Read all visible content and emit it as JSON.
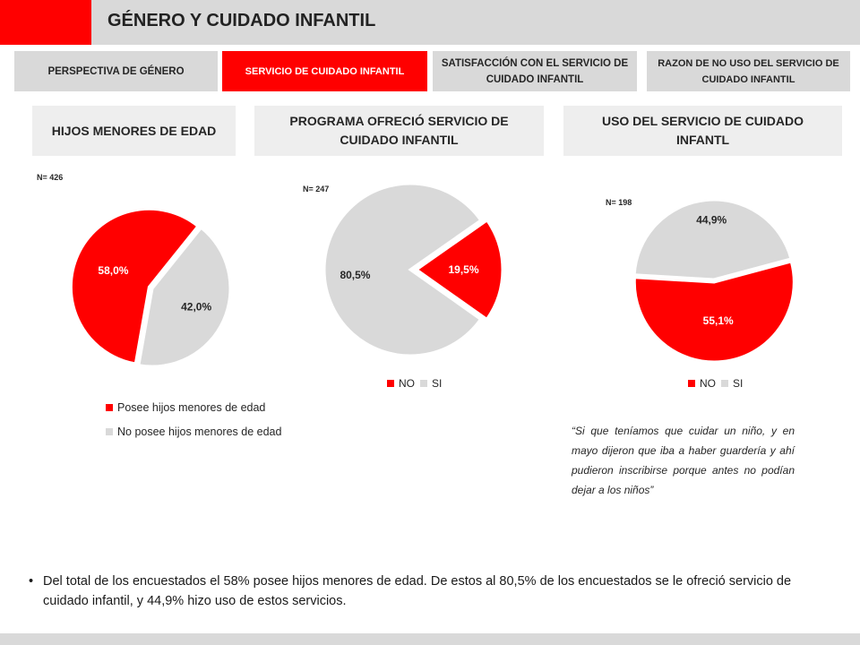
{
  "header": {
    "title": "GÉNERO Y CUIDADO INFANTIL"
  },
  "tabs": [
    {
      "label": "PERSPECTIVA DE GÉNERO"
    },
    {
      "label": "SERVICIO DE CUIDADO INFANTIL"
    },
    {
      "label": "SATISFACCIÓN CON EL SERVICIO DE CUIDADO INFANTIL"
    },
    {
      "label": "RAZON DE NO USO DEL SERVICIO DE CUIDADO INFANTIL"
    }
  ],
  "sections": [
    {
      "title": "HIJOS MENORES DE EDAD"
    },
    {
      "title": "PROGRAMA OFRECIÓ SERVICIO DE CUIDADO INFANTIL"
    },
    {
      "title": "USO DEL SERVICIO DE CUIDADO INFANTL"
    }
  ],
  "colors": {
    "red": "#ff0000",
    "grey": "#d9d9d9"
  },
  "chart_data": [
    {
      "type": "pie",
      "n_label": "N= 426",
      "slices": [
        {
          "label": "Posee hijos menores de edad",
          "value": 58.0,
          "display": "58,0%",
          "color": "#ff0000"
        },
        {
          "label": "No posee hijos menores de edad",
          "value": 42.0,
          "display": "42,0%",
          "color": "#d9d9d9"
        }
      ],
      "legend": [
        "Posee hijos menores de edad",
        "No posee hijos menores de edad"
      ]
    },
    {
      "type": "pie",
      "n_label": "N= 247",
      "slices": [
        {
          "label": "NO",
          "value": 19.5,
          "display": "19,5%",
          "color": "#ff0000"
        },
        {
          "label": "SI",
          "value": 80.5,
          "display": "80,5%",
          "color": "#d9d9d9"
        }
      ],
      "legend": [
        "NO",
        "SI"
      ]
    },
    {
      "type": "pie",
      "n_label": "N= 198",
      "slices": [
        {
          "label": "NO",
          "value": 55.1,
          "display": "55,1%",
          "color": "#ff0000"
        },
        {
          "label": "SI",
          "value": 44.9,
          "display": "44,9%",
          "color": "#d9d9d9"
        }
      ],
      "legend": [
        "NO",
        "SI"
      ]
    }
  ],
  "quote": "“Si que teníamos que cuidar un niño, y en mayo dijeron que iba a haber guardería y ahí pudieron inscribirse porque antes no podían dejar a los niños”",
  "summary": "Del total de los encuestados el 58% posee hijos menores de edad. De estos al 80,5% de los encuestados se le ofreció servicio de cuidado infantil, y 44,9%  hizo uso de estos servicios."
}
